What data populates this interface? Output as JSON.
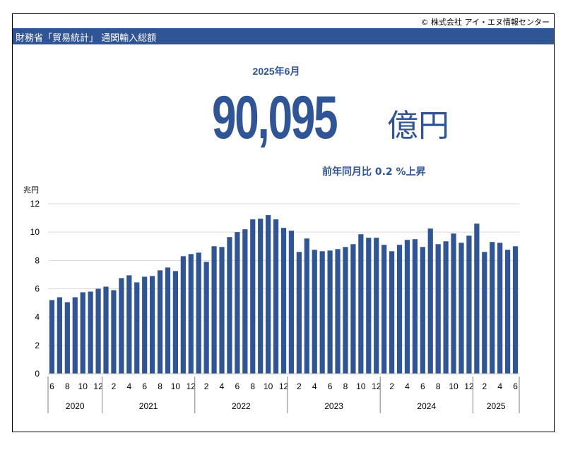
{
  "copyright": "© 株式会社 アイ・エヌ情報センター",
  "header": {
    "title": "財務省「貿易統計」 通関輸入総額"
  },
  "headline": {
    "period": "2025年6月",
    "value": "90,095",
    "unit": "億円",
    "yoy": "前年同月比  0.2 %上昇"
  },
  "colors": {
    "accent": "#2f5597",
    "bar": "#2f5597",
    "grid": "#d9d9d9"
  },
  "chart_data": {
    "type": "bar",
    "ylabel": "兆円",
    "ylim": [
      0,
      12
    ],
    "yticks": [
      0,
      2,
      4,
      6,
      8,
      10,
      12
    ],
    "grid": true,
    "x_month_labels": [
      "6",
      "8",
      "10",
      "12",
      "2",
      "4",
      "6",
      "8",
      "10",
      "12",
      "2",
      "4",
      "6",
      "8",
      "10",
      "12",
      "2",
      "4",
      "6",
      "8",
      "10",
      "12",
      "2",
      "4",
      "6",
      "8",
      "10",
      "12",
      "2",
      "4",
      "6"
    ],
    "years": [
      {
        "label": "2020",
        "months": 7
      },
      {
        "label": "2021",
        "months": 12
      },
      {
        "label": "2022",
        "months": 12
      },
      {
        "label": "2023",
        "months": 12
      },
      {
        "label": "2024",
        "months": 12
      },
      {
        "label": "2025",
        "months": 6
      }
    ],
    "values": [
      5.2,
      5.4,
      5.05,
      5.4,
      5.75,
      5.8,
      6.0,
      6.15,
      5.9,
      6.75,
      6.95,
      6.45,
      6.85,
      6.9,
      7.3,
      7.5,
      7.25,
      8.3,
      8.45,
      8.55,
      7.9,
      9.0,
      8.95,
      9.65,
      10.0,
      10.2,
      10.9,
      10.95,
      11.2,
      10.9,
      10.3,
      10.1,
      8.6,
      9.55,
      8.75,
      8.65,
      8.7,
      8.8,
      8.95,
      9.15,
      9.85,
      9.6,
      9.6,
      9.1,
      8.65,
      9.1,
      9.45,
      9.5,
      8.95,
      10.25,
      9.15,
      9.35,
      9.9,
      9.25,
      9.75,
      10.6,
      8.6,
      9.3,
      9.25,
      8.75,
      9.0
    ]
  }
}
